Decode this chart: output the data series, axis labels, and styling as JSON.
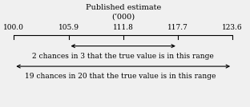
{
  "title_line1": "Published estimate",
  "title_line2": "(‘000)",
  "tick_values": [
    100.0,
    105.9,
    111.8,
    117.7,
    123.6
  ],
  "tick_labels": [
    "100.0",
    "105.9",
    "111.8",
    "117.7",
    "123.6"
  ],
  "published_estimate": 111.8,
  "ci_67_low": 105.9,
  "ci_67_high": 117.7,
  "ci_95_low": 100.0,
  "ci_95_high": 123.6,
  "axis_low": 100.0,
  "axis_high": 123.6,
  "label_67": "2 chances in 3 that the true value is in this range",
  "label_95": "19 chances in 20 that the true value is in this range",
  "bg_color": "#f0f0f0",
  "fg_color": "#000000",
  "font_size": 6.5,
  "title_font_size": 7.0
}
